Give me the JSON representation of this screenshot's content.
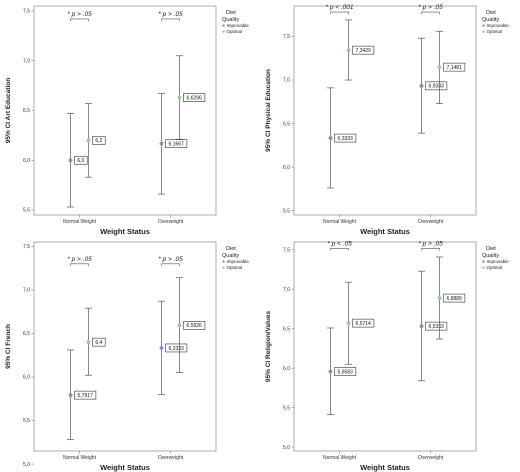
{
  "colors": {
    "improvable": "#8c8ccc",
    "optimal": "#99cc99",
    "errorbar": "#555555",
    "axis": "#777777"
  },
  "chart_data": [
    {
      "type": "errorbar",
      "ylabel": "95% CI Art Education",
      "xlabel": "Weight Status",
      "categories": [
        "Normal Weight",
        "Overweight"
      ],
      "ylim": [
        5.45,
        7.55
      ],
      "yticks": [
        "5,5",
        "6,0",
        "6,5",
        "7,0",
        "7,5"
      ],
      "ytick_values": [
        5.5,
        6.0,
        6.5,
        7.0,
        7.5
      ],
      "legend": {
        "title_line1": "Diet",
        "title_line2": "Quality",
        "position": "top-right"
      },
      "series": [
        {
          "name": "Improvable",
          "means": [
            6.0,
            6.1667
          ],
          "lower": [
            5.53,
            5.66
          ],
          "upper": [
            6.47,
            6.67
          ],
          "labels": [
            "6,0",
            "6,1667"
          ]
        },
        {
          "name": "Optimal",
          "means": [
            6.2,
            6.6296
          ],
          "lower": [
            5.83,
            6.21
          ],
          "upper": [
            6.57,
            7.05
          ],
          "labels": [
            "6,2",
            "6,6296"
          ]
        }
      ],
      "annotations": [
        {
          "category": "Normal Weight",
          "text": "* p > .05",
          "level": 7.42
        },
        {
          "category": "Overweight",
          "text": "* p > .05",
          "level": 7.42
        }
      ]
    },
    {
      "type": "errorbar",
      "ylabel": "95% CI Physical Education",
      "xlabel": "Weight Status",
      "categories": [
        "Normal Weight",
        "Overweight"
      ],
      "ylim": [
        5.45,
        7.85
      ],
      "yticks": [
        "5,5",
        "6,0",
        "6,5",
        "7,0",
        "7,5"
      ],
      "ytick_values": [
        5.5,
        6.0,
        6.5,
        7.0,
        7.5
      ],
      "legend": {
        "title_line1": "Diet",
        "title_line2": "Quality",
        "position": "top-right"
      },
      "series": [
        {
          "name": "Improvable",
          "means": [
            6.3333,
            6.9333
          ],
          "lower": [
            5.76,
            6.39
          ],
          "upper": [
            6.91,
            7.48
          ],
          "labels": [
            "6,3333",
            "6,9333"
          ]
        },
        {
          "name": "Optimal",
          "means": [
            7.3429,
            7.1481
          ],
          "lower": [
            7.0,
            6.73
          ],
          "upper": [
            7.69,
            7.56
          ],
          "labels": [
            "7,3429",
            "7,1481"
          ]
        }
      ],
      "annotations": [
        {
          "category": "Normal Weight",
          "text": "* p < .001",
          "level": 7.78
        },
        {
          "category": "Overweight",
          "text": "* p > .05",
          "level": 7.78
        }
      ]
    },
    {
      "type": "errorbar",
      "ylabel": "95% CI French",
      "xlabel": "Weight Status",
      "categories": [
        "Normal Weight",
        "Overweight"
      ],
      "ylim": [
        5.15,
        7.55
      ],
      "yticks": [
        "5,0",
        "5,5",
        "6,0",
        "6,5",
        "7,0",
        "7,5"
      ],
      "ytick_values": [
        5.0,
        5.5,
        6.0,
        6.5,
        7.0,
        7.5
      ],
      "legend": {
        "title_line1": "Diet",
        "title_line2": "Quality",
        "position": "top-right"
      },
      "series": [
        {
          "name": "Improvable",
          "means": [
            5.7917,
            6.3333
          ],
          "lower": [
            5.28,
            5.8
          ],
          "upper": [
            6.31,
            6.87
          ],
          "labels": [
            "5,7917",
            "6,3333"
          ]
        },
        {
          "name": "Optimal",
          "means": [
            6.4,
            6.5926
          ],
          "lower": [
            6.02,
            6.05
          ],
          "upper": [
            6.79,
            7.14
          ],
          "labels": [
            "6,4",
            "6,5926"
          ]
        }
      ],
      "annotations": [
        {
          "category": "Normal Weight",
          "text": "* p > .05",
          "level": 7.3
        },
        {
          "category": "Overweight",
          "text": "* p > .05",
          "level": 7.3
        }
      ]
    },
    {
      "type": "errorbar",
      "ylabel": "95% CI Religion/Values",
      "xlabel": "Weight Status",
      "categories": [
        "Normal Weight",
        "Overweight"
      ],
      "ylim": [
        4.95,
        7.6
      ],
      "yticks": [
        "5,0",
        "5,5",
        "6,0",
        "6,5",
        "7,0",
        "7,5"
      ],
      "ytick_values": [
        5.0,
        5.5,
        6.0,
        6.5,
        7.0,
        7.5
      ],
      "legend": {
        "title_line1": "Diet",
        "title_line2": "Quality",
        "position": "top-right"
      },
      "series": [
        {
          "name": "Improvable",
          "means": [
            5.9583,
            6.5333
          ],
          "lower": [
            5.41,
            5.84
          ],
          "upper": [
            6.51,
            7.23
          ],
          "labels": [
            "5,9583",
            "6,5333"
          ]
        },
        {
          "name": "Optimal",
          "means": [
            6.5714,
            6.8889
          ],
          "lower": [
            6.05,
            6.37
          ],
          "upper": [
            7.09,
            7.41
          ],
          "labels": [
            "6,5714",
            "6,8889"
          ]
        }
      ],
      "annotations": [
        {
          "category": "Normal Weight",
          "text": "* p < .05",
          "level": 7.52
        },
        {
          "category": "Overweight",
          "text": "* p > .05",
          "level": 7.52
        }
      ]
    }
  ]
}
